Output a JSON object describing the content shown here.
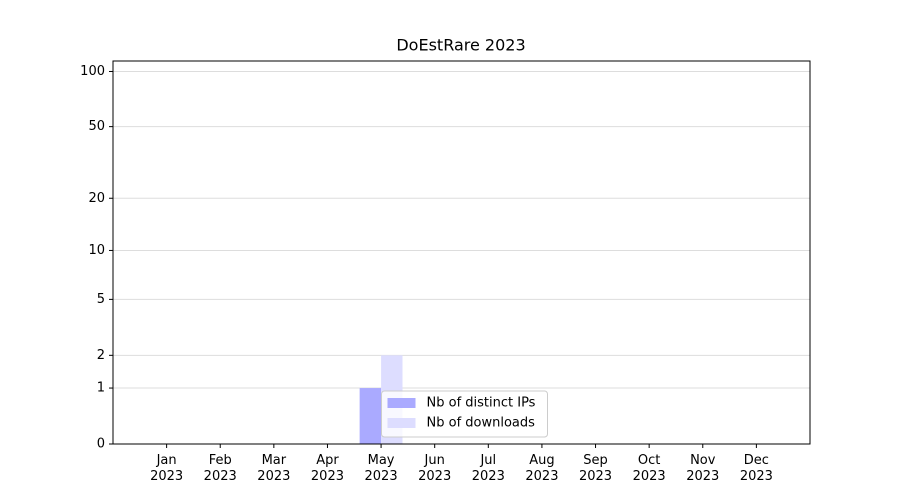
{
  "chart_data": {
    "type": "bar",
    "title": "DoEstRare 2023",
    "categories": [
      "Jan\n2023",
      "Feb\n2023",
      "Mar\n2023",
      "Apr\n2023",
      "May\n2023",
      "Jun\n2023",
      "Jul\n2023",
      "Aug\n2023",
      "Sep\n2023",
      "Oct\n2023",
      "Nov\n2023",
      "Dec\n2023"
    ],
    "series": [
      {
        "name": "Nb of distinct IPs",
        "color": "#aaaaff",
        "values": [
          0,
          0,
          0,
          0,
          1,
          0,
          0,
          0,
          0,
          0,
          0,
          0
        ]
      },
      {
        "name": "Nb of downloads",
        "color": "#ddddff",
        "values": [
          0,
          0,
          0,
          0,
          2,
          0,
          0,
          0,
          0,
          0,
          0,
          0
        ]
      }
    ],
    "yscale": "log1p",
    "ylim": [
      0,
      114
    ],
    "yticks": [
      0,
      1,
      2,
      5,
      10,
      20,
      50,
      100
    ],
    "grid": true,
    "legend": "lower center"
  }
}
